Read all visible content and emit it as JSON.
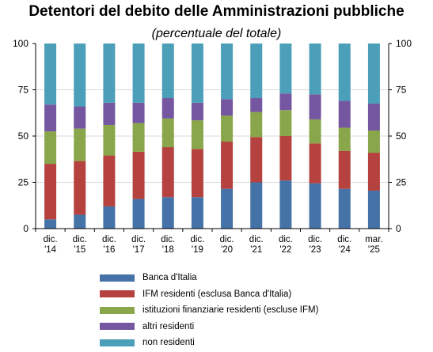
{
  "chart_data": {
    "type": "bar",
    "stacked": true,
    "title": "Detentori del debito delle Amministrazioni pubbliche",
    "subtitle": "(percentuale del totale)",
    "categories": [
      [
        "dic.",
        "'14"
      ],
      [
        "dic.",
        "'15"
      ],
      [
        "dic.",
        "'16"
      ],
      [
        "dic.",
        "'17"
      ],
      [
        "dic.",
        "'18"
      ],
      [
        "dic.",
        "'19"
      ],
      [
        "dic.",
        "'20"
      ],
      [
        "dic.",
        "'21"
      ],
      [
        "dic.",
        "'22"
      ],
      [
        "dic.",
        "'23"
      ],
      [
        "dic.",
        "'24"
      ],
      [
        "mar.",
        "'25"
      ]
    ],
    "ylim": [
      0,
      100
    ],
    "yticks": [
      0,
      25,
      50,
      75,
      100
    ],
    "right_axis": true,
    "legend_position": "bottom",
    "series": [
      {
        "name": "Banca d'Italia",
        "color": "#4572a7",
        "values": [
          5,
          7.5,
          12,
          16,
          17,
          17,
          21.5,
          25,
          26,
          24.5,
          21.5,
          20.5
        ]
      },
      {
        "name": "IFM residenti (esclusa Banca d'Italia)",
        "color": "#b5423e",
        "values": [
          30,
          29,
          27.5,
          25.5,
          27,
          26,
          25.5,
          24.5,
          24,
          21.5,
          20.5,
          20.5
        ]
      },
      {
        "name": "istituzioni finanziarie residenti (escluse IFM)",
        "color": "#8aa64a",
        "values": [
          17.5,
          17.5,
          16.5,
          15.5,
          15.5,
          15.5,
          14,
          13.5,
          14,
          13,
          12.5,
          12
        ]
      },
      {
        "name": "altri residenti",
        "color": "#7457a0",
        "values": [
          14.5,
          12,
          12,
          11,
          11,
          9.5,
          9,
          7.5,
          9,
          13.5,
          14.5,
          14.5
        ]
      },
      {
        "name": "non residenti",
        "color": "#4b9fb8",
        "values": [
          33,
          34,
          32,
          32,
          29.5,
          32,
          30,
          29.5,
          27,
          27.5,
          31,
          32.5
        ]
      }
    ]
  }
}
